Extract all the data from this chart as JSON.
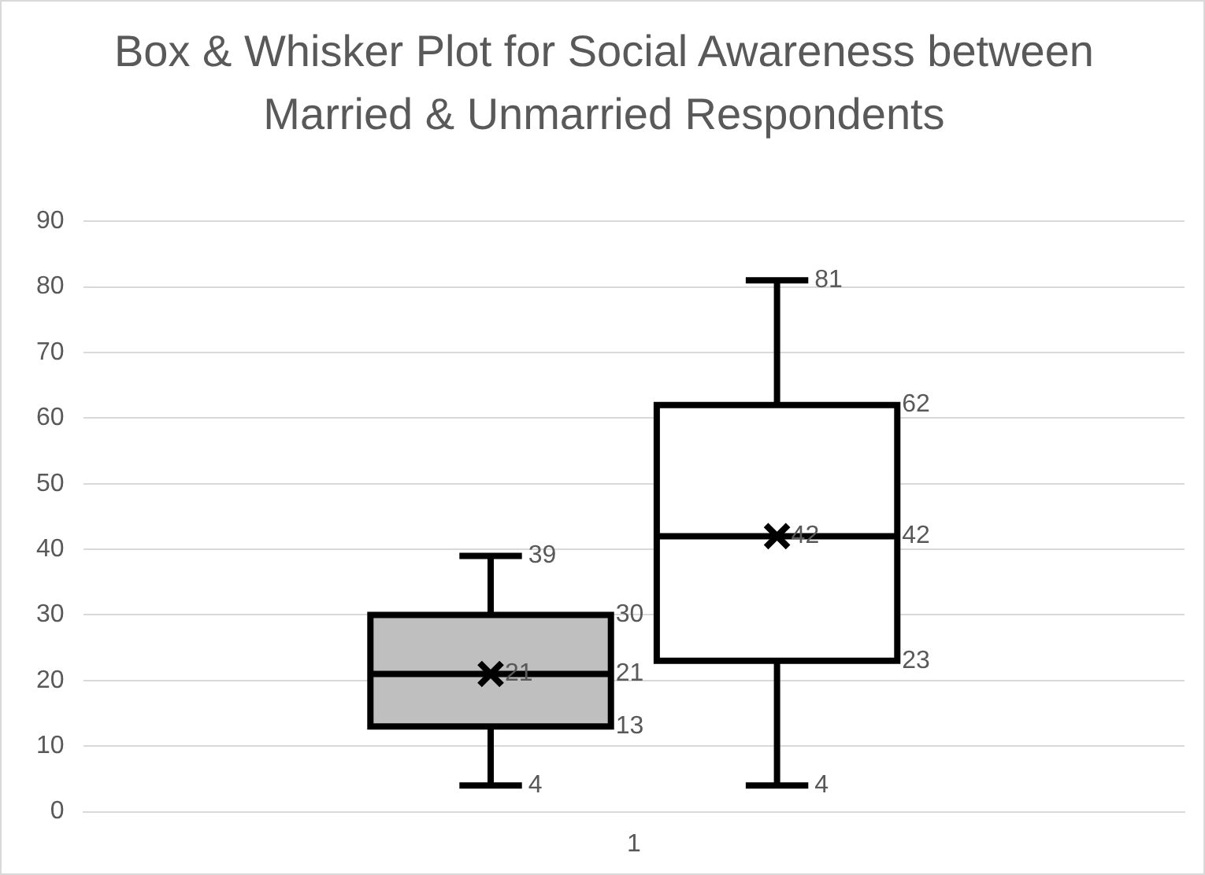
{
  "chart_data": {
    "type": "box",
    "title": "Box & Whisker Plot for Social Awareness between Married & Unmarried Respondents",
    "categories": [
      "1"
    ],
    "series": [
      {
        "color": "#bfbfbf",
        "boxes": [
          {
            "low": 4,
            "q1": 13,
            "median": 21,
            "q3": 30,
            "high": 39,
            "mean": 21
          }
        ]
      },
      {
        "color": "#ffffff",
        "boxes": [
          {
            "low": 4,
            "q1": 23,
            "median": 42,
            "q3": 62,
            "high": 81,
            "mean": 42
          }
        ]
      }
    ],
    "ylim": [
      0,
      90
    ],
    "yticks": [
      0,
      10,
      20,
      30,
      40,
      50,
      60,
      70,
      80,
      90
    ],
    "grid": "y",
    "marker": "cross",
    "annotations": [
      "39",
      "30",
      "21",
      "21",
      "13",
      "4",
      "81",
      "62",
      "42",
      "42",
      "23",
      "4"
    ]
  }
}
